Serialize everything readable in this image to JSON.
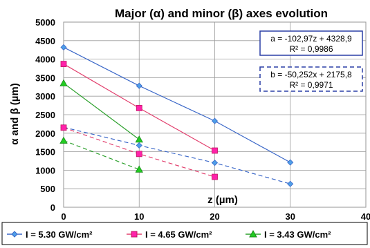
{
  "chart_data": {
    "type": "line",
    "title": "Major (α) and minor (β) axes evolution",
    "xlabel": "z (µm)",
    "ylabel": "α and β (µm)",
    "xlim": [
      0,
      40
    ],
    "ylim": [
      0,
      5000
    ],
    "x_ticks": [
      0,
      10,
      20,
      30,
      40
    ],
    "y_ticks": [
      0,
      500,
      1000,
      1500,
      2000,
      2500,
      3000,
      3500,
      4000,
      4500,
      5000
    ],
    "grid": true,
    "legend_position": "bottom",
    "series": [
      {
        "name": "I = 5.30 GW/cm²",
        "axis": "major",
        "color": "#3a67c8",
        "marker": "diamond",
        "dashed": false,
        "x": [
          0,
          10,
          20,
          30
        ],
        "y": [
          4320,
          3280,
          2330,
          1210
        ]
      },
      {
        "name": "I = 4.65 GW/cm²",
        "axis": "major",
        "color": "#e2406e",
        "marker": "square",
        "dashed": false,
        "x": [
          0,
          10,
          20
        ],
        "y": [
          3870,
          2680,
          1530
        ]
      },
      {
        "name": "I = 3.43 GW/cm²",
        "axis": "major",
        "color": "#2ca02c",
        "marker": "triangle",
        "dashed": false,
        "x": [
          0,
          10
        ],
        "y": [
          3350,
          1830
        ]
      },
      {
        "name": "I = 5.30 GW/cm²",
        "axis": "minor",
        "color": "#3a67c8",
        "marker": "diamond",
        "dashed": true,
        "x": [
          0,
          10,
          20,
          30
        ],
        "y": [
          2160,
          1670,
          1200,
          630
        ]
      },
      {
        "name": "I = 4.65 GW/cm²",
        "axis": "minor",
        "color": "#e2406e",
        "marker": "square",
        "dashed": true,
        "x": [
          0,
          10,
          20
        ],
        "y": [
          2150,
          1440,
          820
        ]
      },
      {
        "name": "I = 3.43 GW/cm²",
        "axis": "minor",
        "color": "#2ca02c",
        "marker": "triangle",
        "dashed": true,
        "x": [
          0,
          10
        ],
        "y": [
          1800,
          1020
        ]
      }
    ],
    "annotations": [
      {
        "line1": "a = -102,97z + 4328,9",
        "line2": "R² = 0,9986",
        "box_style": "solid"
      },
      {
        "line1": "b = -50,252x + 2175,8",
        "line2": "R² = 0,9971",
        "box_style": "dashed"
      }
    ]
  }
}
